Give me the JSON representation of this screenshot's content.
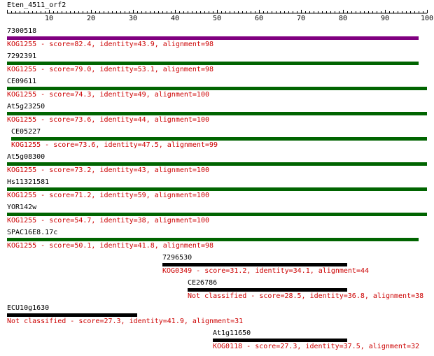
{
  "query": {
    "name": "Eten_4511_orf2",
    "length": 100
  },
  "axis": {
    "range": [
      0,
      100
    ],
    "labeled_ticks": [
      10,
      20,
      30,
      40,
      50,
      60,
      70,
      80,
      90,
      100
    ]
  },
  "colors": {
    "KOG1255_top": "#800080",
    "KOG1255": "#006400",
    "other": "#000000",
    "label_text": "#cc0000"
  },
  "hits": [
    {
      "name": "7300518",
      "start": 1,
      "end": 98,
      "color": "#800080",
      "description": "KOG1255 - score=82.4, identity=43.9, alignment=98"
    },
    {
      "name": "7292391",
      "start": 1,
      "end": 98,
      "color": "#006400",
      "description": "KOG1255 - score=79.0, identity=53.1, alignment=98"
    },
    {
      "name": "CE09611",
      "start": 1,
      "end": 100,
      "color": "#006400",
      "description": "KOG1255 - score=74.3, identity=49, alignment=100"
    },
    {
      "name": "At5g23250",
      "start": 1,
      "end": 100,
      "color": "#006400",
      "description": "KOG1255 - score=73.6, identity=44, alignment=100"
    },
    {
      "name": "CE05227",
      "start": 2,
      "end": 100,
      "color": "#006400",
      "description": "KOG1255 - score=73.6, identity=47.5, alignment=99"
    },
    {
      "name": "At5g08300",
      "start": 1,
      "end": 100,
      "color": "#006400",
      "description": "KOG1255 - score=73.2, identity=43, alignment=100"
    },
    {
      "name": "Hs11321581",
      "start": 1,
      "end": 100,
      "color": "#006400",
      "description": "KOG1255 - score=71.2, identity=59, alignment=100"
    },
    {
      "name": "YOR142w",
      "start": 1,
      "end": 100,
      "color": "#006400",
      "description": "KOG1255 - score=54.7, identity=38, alignment=100"
    },
    {
      "name": "SPAC16E8.17c",
      "start": 1,
      "end": 98,
      "color": "#006400",
      "description": "KOG1255 - score=50.1, identity=41.8, alignment=98"
    },
    {
      "name": "7296530",
      "start": 38,
      "end": 81,
      "color": "#000000",
      "description": "KOG0349 - score=31.2, identity=34.1, alignment=44"
    },
    {
      "name": "CE26786",
      "start": 44,
      "end": 81,
      "color": "#000000",
      "description": "Not classified - score=28.5, identity=36.8, alignment=38"
    },
    {
      "name": "ECU10g1630",
      "start": 1,
      "end": 31,
      "color": "#000000",
      "description": "Not classified - score=27.3, identity=41.9, alignment=31"
    },
    {
      "name": "At1g11650",
      "start": 50,
      "end": 81,
      "color": "#000000",
      "description": "KOG0118 - score=27.3, identity=37.5, alignment=32"
    }
  ]
}
